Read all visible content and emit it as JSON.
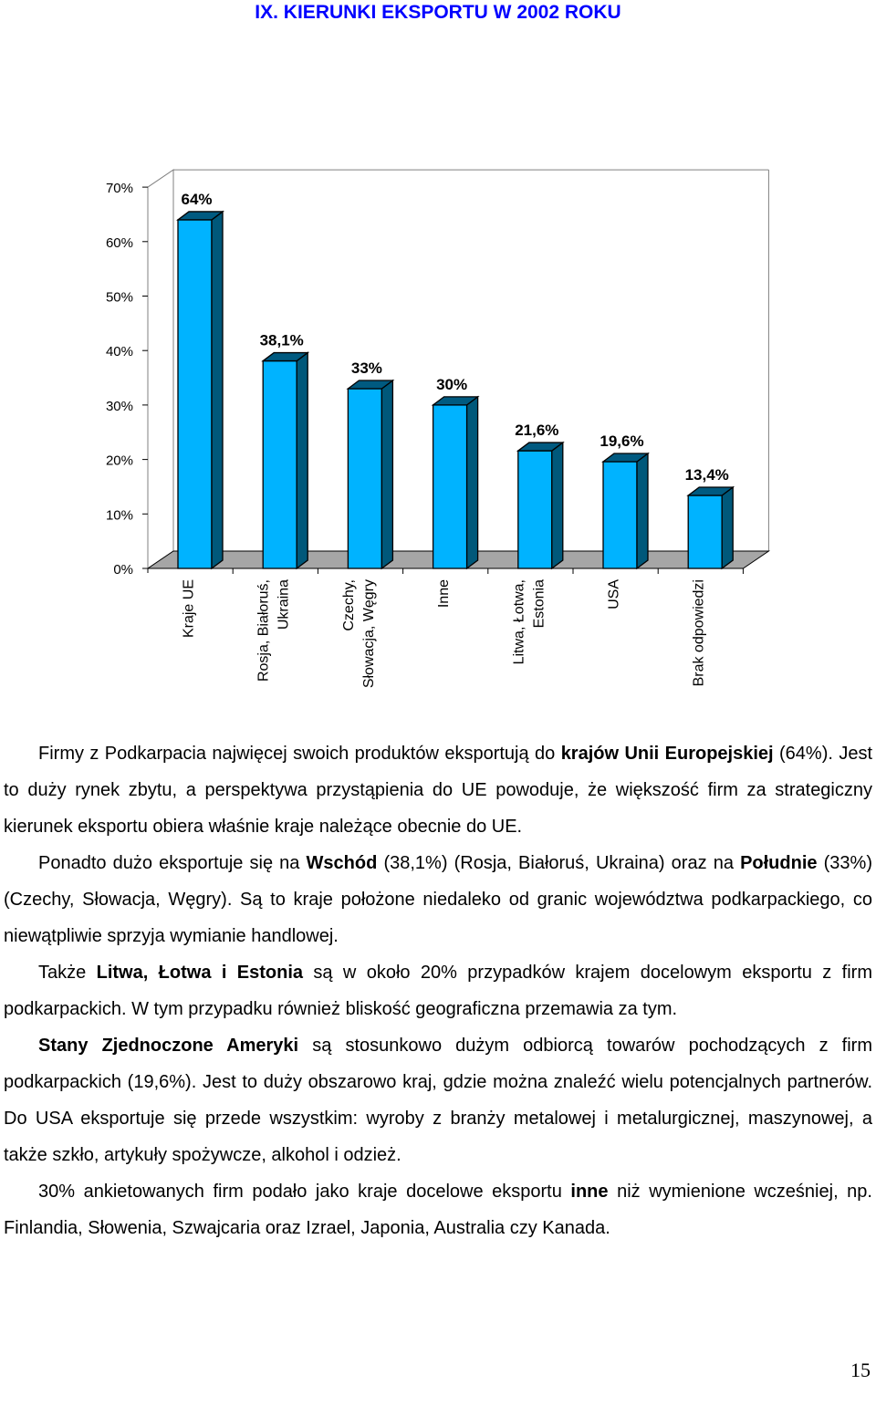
{
  "page": {
    "title": "IX. KIERUNKI EKSPORTU W 2002 ROKU",
    "page_number": "15"
  },
  "colors": {
    "title": "#0000ff",
    "bar_front": "#00b3ff",
    "bar_side": "#00587a",
    "bar_top": "#005a80",
    "floor": "#a6a6a6"
  },
  "chart_data": {
    "type": "bar",
    "categories": [
      "Kraje UE",
      "Rosja, Białoruś, Ukraina",
      "Czechy, Słowacja, Węgry",
      "Inne",
      "Litwa, Łotwa, Estonia",
      "USA",
      "Brak odpowiedzi"
    ],
    "category_lines": [
      [
        "Kraje UE"
      ],
      [
        "Rosja, Białoruś,",
        "Ukraina"
      ],
      [
        "Czechy,",
        "Słowacja, Węgry"
      ],
      [
        "Inne"
      ],
      [
        "Litwa, Łotwa,",
        "Estonia"
      ],
      [
        "USA"
      ],
      [
        "Brak odpowiedzi"
      ]
    ],
    "values": [
      64,
      38.1,
      33,
      30,
      21.6,
      19.6,
      13.4
    ],
    "data_labels": [
      "64%",
      "38,1%",
      "33%",
      "30%",
      "21,6%",
      "19,6%",
      "13,4%"
    ],
    "ylim": [
      0,
      70
    ],
    "yticks": [
      "0%",
      "10%",
      "20%",
      "30%",
      "40%",
      "50%",
      "60%",
      "70%"
    ],
    "grid": false,
    "legend": "none",
    "style": "3d-column"
  },
  "paragraphs": [
    [
      {
        "t": "Firmy z Podkarpacia najwięcej swoich produktów eksportują do "
      },
      {
        "t": "krajów Unii Europejskiej",
        "b": true
      },
      {
        "t": " (64%). Jest to duży rynek zbytu, a perspektywa przystąpienia do UE powoduje, że większość firm za strategiczny kierunek eksportu obiera właśnie kraje należące obecnie do UE."
      }
    ],
    [
      {
        "t": "Ponadto dużo eksportuje się na "
      },
      {
        "t": "Wschód",
        "b": true
      },
      {
        "t": " (38,1%) (Rosja, Białoruś, Ukraina) oraz na "
      },
      {
        "t": "Południe",
        "b": true
      },
      {
        "t": " (33%) (Czechy, Słowacja, Węgry). Są to kraje położone niedaleko od granic województwa podkarpackiego, co niewątpliwie sprzyja wymianie handlowej."
      }
    ],
    [
      {
        "t": "Także "
      },
      {
        "t": "Litwa, Łotwa i Estonia",
        "b": true
      },
      {
        "t": " są w około 20% przypadków krajem docelowym eksportu z firm podkarpackich. W tym przypadku również bliskość geograficzna przemawia za tym."
      }
    ],
    [
      {
        "t": "Stany Zjednoczone Ameryki",
        "b": true
      },
      {
        "t": " są stosunkowo dużym odbiorcą towarów pochodzących z firm podkarpackich (19,6%). Jest to duży obszarowo kraj, gdzie można znaleźć wielu potencjalnych partnerów. Do USA eksportuje się przede wszystkim: wyroby z branży metalowej i metalurgicznej, maszynowej, a także szkło, artykuły spożywcze, alkohol i odzież."
      }
    ],
    [
      {
        "t": "30% ankietowanych firm podało jako kraje docelowe eksportu "
      },
      {
        "t": "inne",
        "b": true
      },
      {
        "t": " niż wymienione wcześniej, np. Finlandia, Słowenia, Szwajcaria oraz Izrael, Japonia, Australia czy Kanada."
      }
    ]
  ]
}
